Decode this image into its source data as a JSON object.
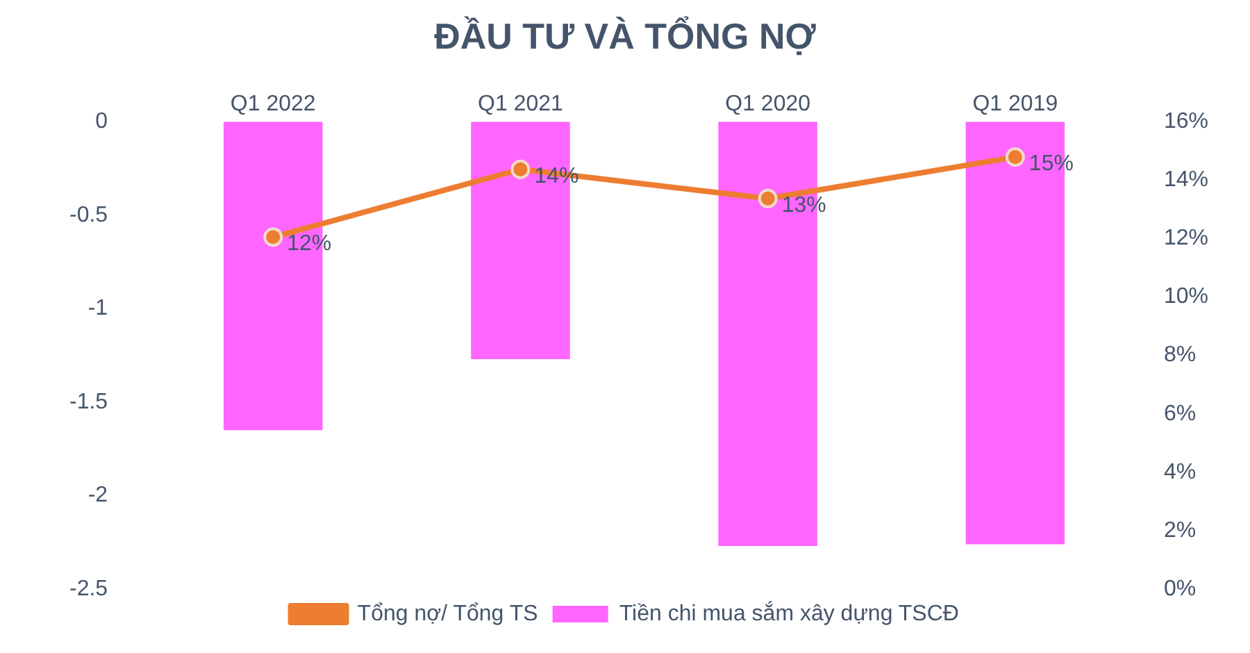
{
  "chart_data": {
    "type": "bar",
    "title": "ĐẦU TƯ VÀ TỔNG NỢ",
    "categories": [
      "Q1 2022",
      "Q1 2021",
      "Q1 2020",
      "Q1 2019"
    ],
    "series": [
      {
        "name": "Tiền chi mua sắm xây dựng TSCĐ",
        "color": "#ff66ff",
        "values": [
          -1.65,
          -1.27,
          -2.27,
          -2.26
        ]
      },
      {
        "name": "Tổng nợ/ Tổng TS",
        "type": "line",
        "axis": "y2",
        "color": "#ed7d31",
        "marker": "circle",
        "values": [
          12.05,
          14.37,
          13.37,
          14.79
        ],
        "value_labels": [
          "12%",
          "14%",
          "13%",
          "15%"
        ]
      }
    ],
    "ylim": [
      -2.5,
      0
    ],
    "yticks": [
      0,
      -0.5,
      -1,
      -1.5,
      -2,
      -2.5
    ],
    "y2lim": [
      0,
      16
    ],
    "y2ticks": [
      {
        "value": 0,
        "label": "0%"
      },
      {
        "value": 2,
        "label": "2%"
      },
      {
        "value": 4,
        "label": "4%"
      },
      {
        "value": 6,
        "label": "6%"
      },
      {
        "value": 8,
        "label": "8%"
      },
      {
        "value": 10,
        "label": "10%"
      },
      {
        "value": 12,
        "label": "12%"
      },
      {
        "value": 14,
        "label": "14%"
      },
      {
        "value": 16,
        "label": "16%"
      }
    ],
    "grid": false,
    "legend": "bottom"
  }
}
